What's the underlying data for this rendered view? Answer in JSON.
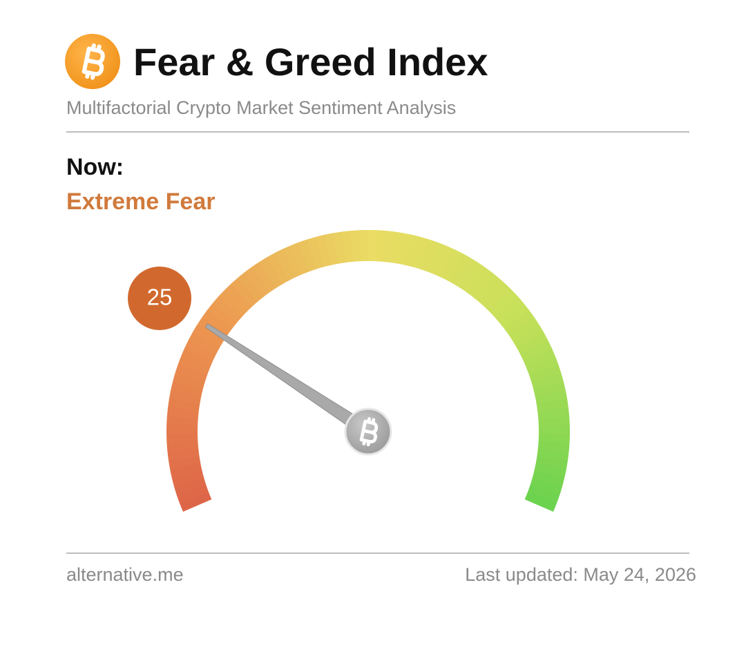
{
  "header": {
    "title": "Fear & Greed Index",
    "subtitle": "Multifactorial Crypto Market Sentiment Analysis"
  },
  "now": {
    "label": "Now:",
    "status": "Extreme Fear"
  },
  "chart_data": {
    "type": "gauge",
    "value": 25,
    "ylim": [
      0,
      100
    ]
  },
  "footer": {
    "source": "alternative.me",
    "updated": "Last updated: May 24, 2026"
  }
}
